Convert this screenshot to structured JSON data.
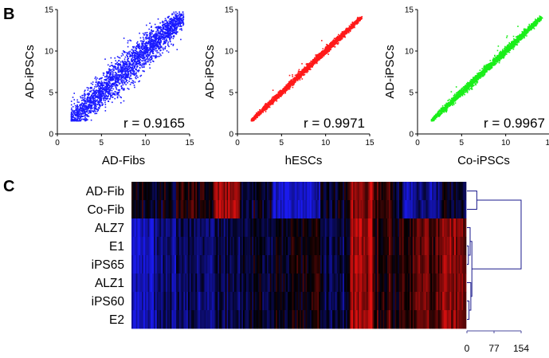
{
  "panels": {
    "b_letter": "B",
    "c_letter": "C"
  },
  "chart_data": [
    {
      "type": "scatter",
      "xlabel": "AD-Fibs",
      "ylabel": "AD-iPSCs",
      "annotation": "r = 0.9165",
      "r": 0.9165,
      "color": "#1a1aff",
      "xlim": [
        0,
        15
      ],
      "ylim": [
        0,
        15
      ],
      "xticks": [
        "0",
        "5",
        "10",
        "15"
      ],
      "yticks": [
        "0",
        "5",
        "10",
        "15"
      ],
      "x_range": [
        1.5,
        14
      ],
      "y_range": [
        1.5,
        14.5
      ]
    },
    {
      "type": "scatter",
      "xlabel": "hESCs",
      "ylabel": "AD-iPSCs",
      "annotation": "r = 0.9971",
      "r": 0.9971,
      "color": "#ff1a1a",
      "xlim": [
        0,
        15
      ],
      "ylim": [
        0,
        15
      ],
      "xticks": [
        "0",
        "5",
        "10",
        "15"
      ],
      "yticks": [
        "0",
        "5",
        "10",
        "15"
      ],
      "x_range": [
        1.5,
        14
      ],
      "y_range": [
        1.5,
        14
      ]
    },
    {
      "type": "scatter",
      "xlabel": "Co-iPSCs",
      "ylabel": "AD-iPSCs",
      "annotation": "r = 0.9967",
      "r": 0.9967,
      "color": "#1aee1a",
      "xlim": [
        0,
        15
      ],
      "ylim": [
        0,
        15
      ],
      "xticks": [
        "0",
        "5",
        "10",
        "15"
      ],
      "yticks": [
        "0",
        "5",
        "10",
        "15"
      ],
      "x_range": [
        1.5,
        14
      ],
      "y_range": [
        1.5,
        14
      ]
    },
    {
      "type": "heatmap",
      "rows": [
        "AD-Fib",
        "Co-Fib",
        "ALZ7",
        "E1",
        "iPS65",
        "ALZ1",
        "iPS60",
        "E2"
      ],
      "colors": {
        "high": "#e01010",
        "low": "#1a1aee",
        "mid": "#000000"
      },
      "column_blocks": [
        {
          "cols": 15,
          "fib": 0.0,
          "rest": -0.75
        },
        {
          "cols": 15,
          "fib": -0.15,
          "rest": -0.55
        },
        {
          "cols": 25,
          "fib": 0.15,
          "rest": -0.4
        },
        {
          "cols": 18,
          "fib": 0.75,
          "rest": -0.25
        },
        {
          "cols": 22,
          "fib": -0.15,
          "rest": -0.15
        },
        {
          "cols": 32,
          "fib": -0.85,
          "rest": 0.0
        },
        {
          "cols": 20,
          "fib": -0.1,
          "rest": -0.3
        },
        {
          "cols": 15,
          "fib": 0.65,
          "rest": 0.75
        },
        {
          "cols": 12,
          "fib": 0.35,
          "rest": 0.25
        },
        {
          "cols": 8,
          "fib": -0.1,
          "rest": 0.05
        },
        {
          "cols": 25,
          "fib": -0.6,
          "rest": 0.35
        },
        {
          "cols": 18,
          "fib": -0.2,
          "rest": 0.55
        }
      ],
      "dendrogram": {
        "axis_ticks": [
          "0",
          "77",
          "154"
        ],
        "axis_max": 154,
        "merges": [
          {
            "a": 0,
            "b": 1,
            "height": 28
          },
          {
            "a": 3,
            "b": 4,
            "height": 4
          },
          {
            "a": 6,
            "b": 7,
            "height": 6
          },
          {
            "a": 2,
            "b": "3-4",
            "height": 9
          },
          {
            "a": 5,
            "b": "6-7",
            "height": 11
          },
          {
            "a": "2-4",
            "b": "5-7",
            "height": 14
          },
          {
            "a": "0-1",
            "b": "2-7",
            "height": 154
          }
        ],
        "color": "#1a1a8c"
      }
    }
  ]
}
